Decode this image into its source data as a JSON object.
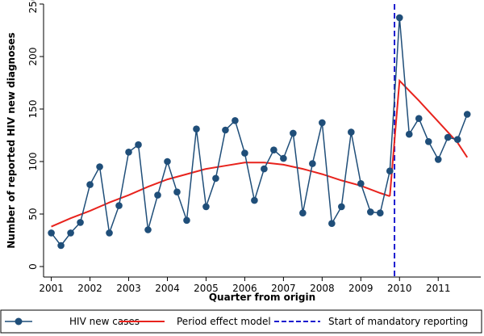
{
  "chart_data": {
    "type": "line",
    "xlabel": "Quarter from origin",
    "ylabel": "Number of reported HIV new diagnoses",
    "xlim": [
      2000.8,
      2012.1
    ],
    "ylim": [
      -10,
      250
    ],
    "yticks": [
      0,
      50,
      100,
      150,
      200,
      250
    ],
    "xticks": [
      2001,
      2002,
      2003,
      2004,
      2005,
      2006,
      2007,
      2008,
      2009,
      2010,
      2011
    ],
    "xtick_labels": [
      "2001",
      "2002",
      "2003",
      "2004",
      "2005",
      "2006",
      "2007",
      "2008",
      "2009",
      "2010",
      "2011"
    ],
    "grid": false,
    "legend_placement": "bottom",
    "mandatory_reporting_x": 2009.87,
    "series": [
      {
        "name": "HIV new cases",
        "style": "line-with-markers",
        "color": "#1f4e79",
        "x": [
          2001.0,
          2001.25,
          2001.5,
          2001.75,
          2002.0,
          2002.25,
          2002.5,
          2002.75,
          2003.0,
          2003.25,
          2003.5,
          2003.75,
          2004.0,
          2004.25,
          2004.5,
          2004.75,
          2005.0,
          2005.25,
          2005.5,
          2005.75,
          2006.0,
          2006.25,
          2006.5,
          2006.75,
          2007.0,
          2007.25,
          2007.5,
          2007.75,
          2008.0,
          2008.25,
          2008.5,
          2008.75,
          2009.0,
          2009.25,
          2009.5,
          2009.75,
          2010.0,
          2010.25,
          2010.5,
          2010.75,
          2011.0,
          2011.25,
          2011.5,
          2011.75
        ],
        "y": [
          32,
          20,
          32,
          42,
          78,
          95,
          32,
          58,
          109,
          116,
          35,
          68,
          100,
          71,
          44,
          131,
          57,
          84,
          130,
          139,
          108,
          63,
          93,
          111,
          103,
          127,
          51,
          98,
          137,
          41,
          57,
          128,
          79,
          52,
          51,
          91,
          237,
          126,
          141,
          119,
          102,
          123,
          121,
          145
        ]
      },
      {
        "name": "Period effect model",
        "style": "line",
        "color": "#e8231d",
        "x": [
          2001.0,
          2001.5,
          2002.0,
          2002.5,
          2003.0,
          2003.5,
          2004.0,
          2004.5,
          2005.0,
          2005.5,
          2006.0,
          2006.5,
          2007.0,
          2007.5,
          2008.0,
          2008.5,
          2009.0,
          2009.5,
          2009.75,
          2010.0,
          2010.5,
          2011.0,
          2011.5,
          2011.75
        ],
        "y": [
          38,
          46,
          53,
          61,
          68,
          76,
          83,
          88,
          93,
          96,
          99,
          99,
          97,
          93,
          88,
          82,
          77,
          70,
          67,
          177,
          158,
          138,
          118,
          104
        ],
        "breaks_after_index": 18
      },
      {
        "name": "Start of mandatory reporting",
        "style": "dashed-vertical",
        "color": "#1c1ccf"
      }
    ]
  }
}
